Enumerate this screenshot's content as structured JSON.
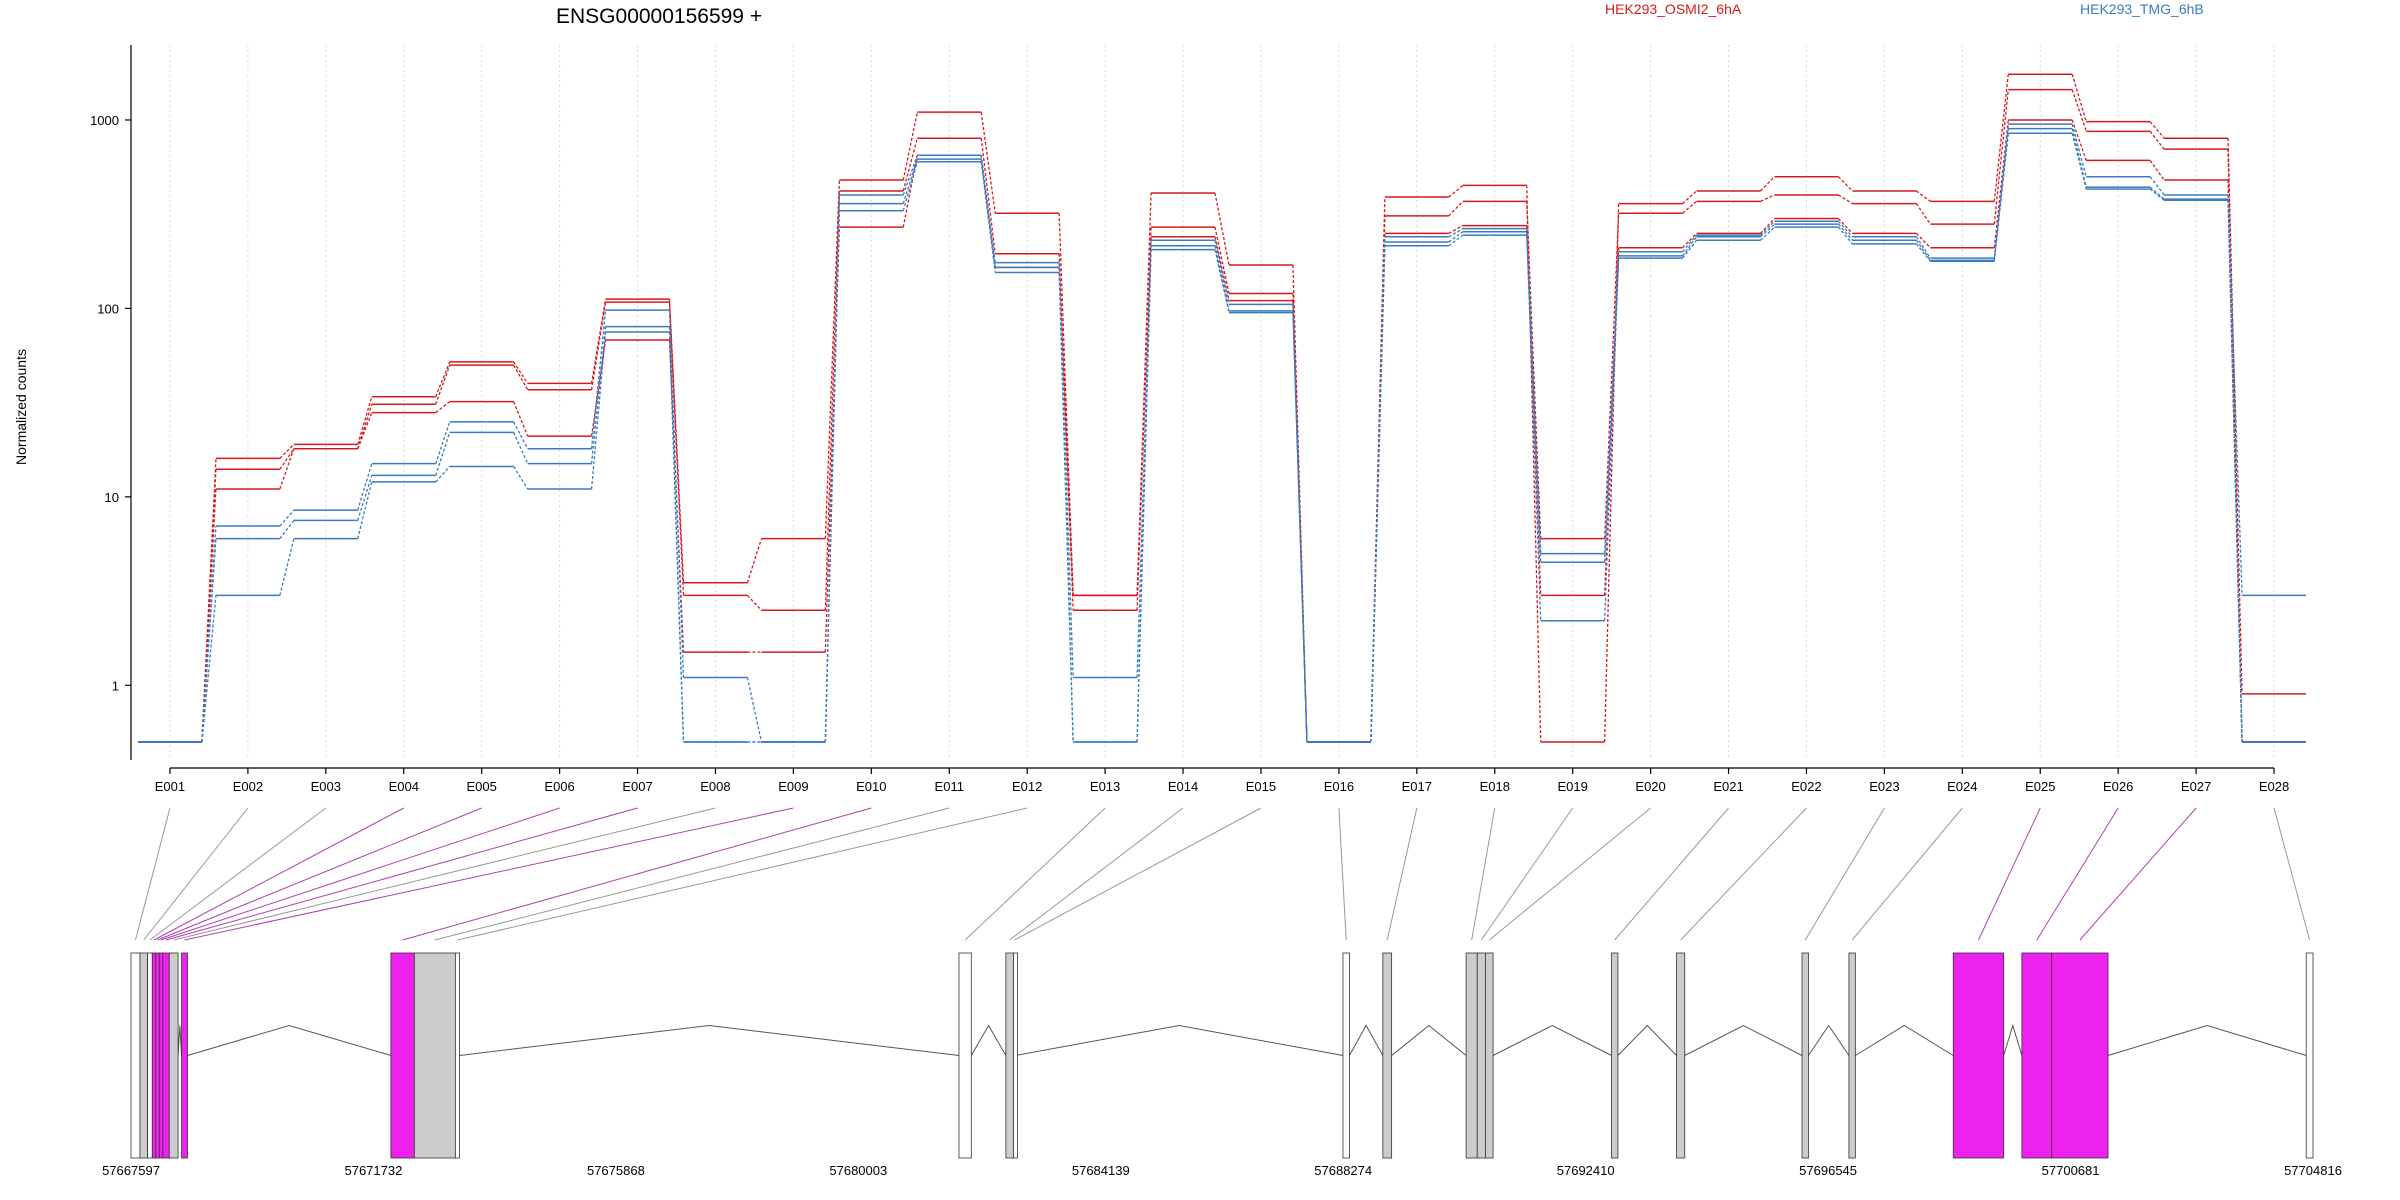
{
  "chart_data": {
    "type": "line",
    "title": "ENSG00000156599 +",
    "ylabel": "Normalized counts",
    "xlabel": "",
    "y_scale": "log",
    "ylim": [
      0.5,
      2500
    ],
    "y_ticks": [
      1,
      10,
      100,
      1000
    ],
    "y_tick_labels": [
      "1",
      "10",
      "100",
      "1000"
    ],
    "grid": "vertical dotted lines at each exon",
    "legend": [
      {
        "label": "HEK293_OSMI2_6hA",
        "color": "#d7191c"
      },
      {
        "label": "HEK293_TMG_6hB",
        "color": "#3a7bbf"
      }
    ],
    "categories": [
      "E001",
      "E002",
      "E003",
      "E004",
      "E005",
      "E006",
      "E007",
      "E008",
      "E009",
      "E010",
      "E011",
      "E012",
      "E013",
      "E014",
      "E015",
      "E016",
      "E017",
      "E018",
      "E019",
      "E020",
      "E021",
      "E022",
      "E023",
      "E024",
      "E025",
      "E026",
      "E027",
      "E028"
    ],
    "series": [
      {
        "color": "#d7191c",
        "values": [
          0.5,
          16,
          19,
          34,
          52,
          40,
          112,
          3.5,
          6,
          480,
          1100,
          320,
          3,
          410,
          170,
          0.5,
          390,
          450,
          0.5,
          360,
          420,
          500,
          420,
          370,
          1750,
          980,
          800,
          0.9
        ]
      },
      {
        "color": "#d7191c",
        "values": [
          0.5,
          14,
          18,
          31,
          50,
          37,
          108,
          3,
          2.5,
          420,
          800,
          195,
          2.5,
          270,
          120,
          0.5,
          310,
          370,
          6,
          320,
          370,
          400,
          360,
          280,
          1450,
          870,
          700,
          0.5
        ]
      },
      {
        "color": "#d7191c",
        "values": [
          0.5,
          11,
          18,
          28,
          32,
          21,
          68,
          1.5,
          1.5,
          270,
          650,
          165,
          3,
          240,
          110,
          0.5,
          250,
          275,
          3,
          210,
          250,
          300,
          250,
          210,
          1000,
          610,
          480,
          0.5
        ]
      },
      {
        "color": "#3a7bbf",
        "values": [
          0.5,
          7,
          8.5,
          15,
          25,
          18,
          98,
          1.1,
          0.5,
          400,
          650,
          175,
          1.1,
          230,
          105,
          0.5,
          240,
          265,
          4.5,
          200,
          245,
          290,
          240,
          185,
          950,
          500,
          400,
          3
        ]
      },
      {
        "color": "#3a7bbf",
        "values": [
          0.5,
          6,
          7.5,
          13,
          22,
          15,
          80,
          0.5,
          0.5,
          360,
          620,
          165,
          0.5,
          215,
          97,
          0.5,
          225,
          255,
          2.2,
          190,
          240,
          280,
          230,
          180,
          900,
          440,
          380,
          0.5
        ]
      },
      {
        "color": "#3a7bbf",
        "values": [
          0.5,
          3,
          6,
          12,
          14.5,
          11,
          75,
          0.5,
          0.5,
          330,
          600,
          155,
          0.5,
          205,
          95,
          0.5,
          215,
          245,
          5,
          185,
          230,
          270,
          220,
          178,
          850,
          430,
          375,
          0.5
        ]
      }
    ],
    "genomic_axis": {
      "min": 57667597,
      "max": 57704816,
      "ticks": [
        57667597,
        57671732,
        57675868,
        57680003,
        57684139,
        57688274,
        57692410,
        57696545,
        57700681,
        57704816
      ],
      "tick_labels": [
        "57667597",
        "57671732",
        "57675868",
        "57680003",
        "57684139",
        "57688274",
        "57692410",
        "57696545",
        "57700681",
        "57704816"
      ]
    },
    "exons": [
      {
        "id": "E001",
        "start": 57667597,
        "end": 57667750,
        "fill": "#ffffff",
        "hl": false
      },
      {
        "id": "E002",
        "start": 57667750,
        "end": 57667880,
        "fill": "#cccccc",
        "hl": false
      },
      {
        "id": "E003",
        "start": 57667880,
        "end": 57667960,
        "fill": "#ffffff",
        "hl": false
      },
      {
        "id": "E004",
        "start": 57667960,
        "end": 57668020,
        "fill": "#ee22ee",
        "hl": true
      },
      {
        "id": "E005",
        "start": 57668020,
        "end": 57668080,
        "fill": "#ee22ee",
        "hl": true
      },
      {
        "id": "E006",
        "start": 57668080,
        "end": 57668140,
        "fill": "#ee22ee",
        "hl": true
      },
      {
        "id": "E007",
        "start": 57668140,
        "end": 57668250,
        "fill": "#ee22ee",
        "hl": true
      },
      {
        "id": "E008",
        "start": 57668250,
        "end": 57668400,
        "fill": "#cccccc",
        "hl": false
      },
      {
        "id": "E009",
        "start": 57668460,
        "end": 57668560,
        "fill": "#ee22ee",
        "hl": true
      },
      {
        "id": "E010",
        "start": 57672030,
        "end": 57672430,
        "fill": "#ee22ee",
        "hl": true
      },
      {
        "id": "E011",
        "start": 57672430,
        "end": 57673130,
        "fill": "#cccccc",
        "hl": false
      },
      {
        "id": "E012",
        "start": 57673130,
        "end": 57673200,
        "fill": "#ffffff",
        "hl": false
      },
      {
        "id": "E013",
        "start": 57681720,
        "end": 57681930,
        "fill": "#ffffff",
        "hl": false
      },
      {
        "id": "E014",
        "start": 57682520,
        "end": 57682650,
        "fill": "#cccccc",
        "hl": false
      },
      {
        "id": "E015",
        "start": 57682650,
        "end": 57682680,
        "fill": "#ffffff",
        "hl": false
      },
      {
        "id": "E016",
        "start": 57688270,
        "end": 57688380,
        "fill": "#ffffff",
        "hl": false
      },
      {
        "id": "E017",
        "start": 57688950,
        "end": 57689100,
        "fill": "#cccccc",
        "hl": false
      },
      {
        "id": "E018",
        "start": 57690370,
        "end": 57690560,
        "fill": "#cccccc",
        "hl": false
      },
      {
        "id": "E019",
        "start": 57690560,
        "end": 57690700,
        "fill": "#cccccc",
        "hl": false
      },
      {
        "id": "E020",
        "start": 57690700,
        "end": 57690830,
        "fill": "#cccccc",
        "hl": false
      },
      {
        "id": "E021",
        "start": 57692850,
        "end": 57692960,
        "fill": "#cccccc",
        "hl": false
      },
      {
        "id": "E022",
        "start": 57693960,
        "end": 57694100,
        "fill": "#cccccc",
        "hl": false
      },
      {
        "id": "E023",
        "start": 57696100,
        "end": 57696210,
        "fill": "#cccccc",
        "hl": false
      },
      {
        "id": "E024",
        "start": 57696900,
        "end": 57697010,
        "fill": "#cccccc",
        "hl": false
      },
      {
        "id": "E025",
        "start": 57698680,
        "end": 57699540,
        "fill": "#ee22ee",
        "hl": true
      },
      {
        "id": "E026",
        "start": 57699850,
        "end": 57700360,
        "fill": "#ee22ee",
        "hl": true
      },
      {
        "id": "E027",
        "start": 57700360,
        "end": 57701320,
        "fill": "#ee22ee",
        "hl": true
      },
      {
        "id": "E028",
        "start": 57704700,
        "end": 57704816,
        "fill": "#ffffff",
        "hl": false
      }
    ]
  }
}
